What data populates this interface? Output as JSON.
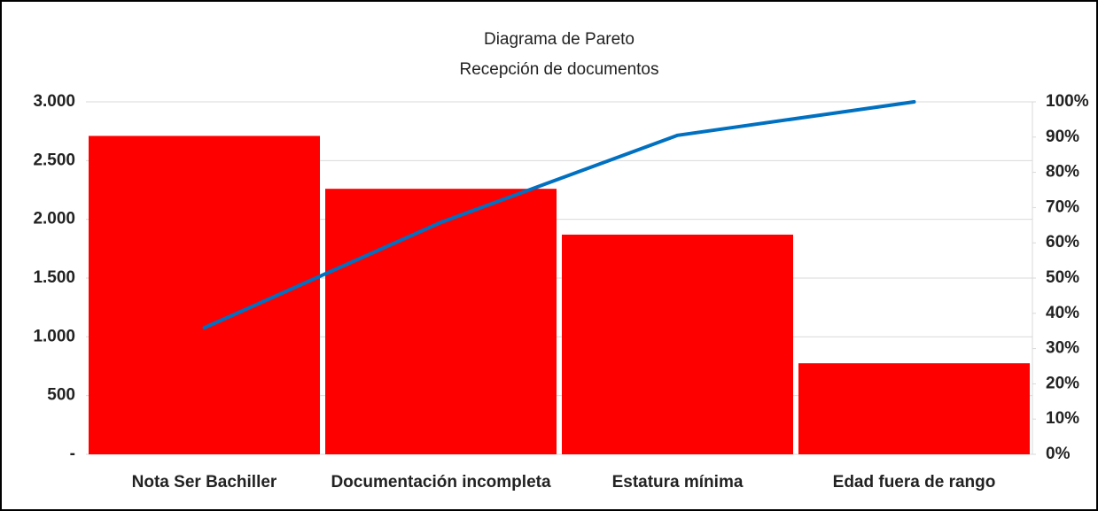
{
  "chart_data": {
    "type": "pareto",
    "title": "Diagrama de Pareto",
    "subtitle": "Recepción de documentos",
    "categories": [
      "Nota Ser Bachiller",
      "Documentación incompleta",
      "Estatura mínima",
      "Edad fuera de rango"
    ],
    "series": [
      {
        "type": "bar",
        "color": "#ff0000",
        "values": [
          2710,
          2260,
          1870,
          775
        ]
      },
      {
        "type": "line",
        "color": "#0070c0",
        "axis": "y2",
        "values": [
          35.9,
          65.8,
          90.5,
          100
        ]
      }
    ],
    "ylim": [
      0,
      3000
    ],
    "yticks": [
      {
        "value": 0,
        "label": "-"
      },
      500,
      {
        "value": 1000,
        "label": "1.000"
      },
      {
        "value": 1500,
        "label": "1.500"
      },
      {
        "value": 2000,
        "label": "2.000"
      },
      {
        "value": 2500,
        "label": "2.500"
      },
      {
        "value": 3000,
        "label": "3.000"
      }
    ],
    "y2lim": [
      0,
      100
    ],
    "y2ticks": [
      {
        "value": 0,
        "label": "0%"
      },
      {
        "value": 10,
        "label": "10%"
      },
      {
        "value": 20,
        "label": "20%"
      },
      {
        "value": 30,
        "label": "30%"
      },
      {
        "value": 40,
        "label": "40%"
      },
      {
        "value": 50,
        "label": "50%"
      },
      {
        "value": 60,
        "label": "60%"
      },
      {
        "value": 70,
        "label": "70%"
      },
      {
        "value": 80,
        "label": "80%"
      },
      {
        "value": 90,
        "label": "90%"
      },
      {
        "value": 100,
        "label": "100%"
      }
    ],
    "grid": true
  }
}
